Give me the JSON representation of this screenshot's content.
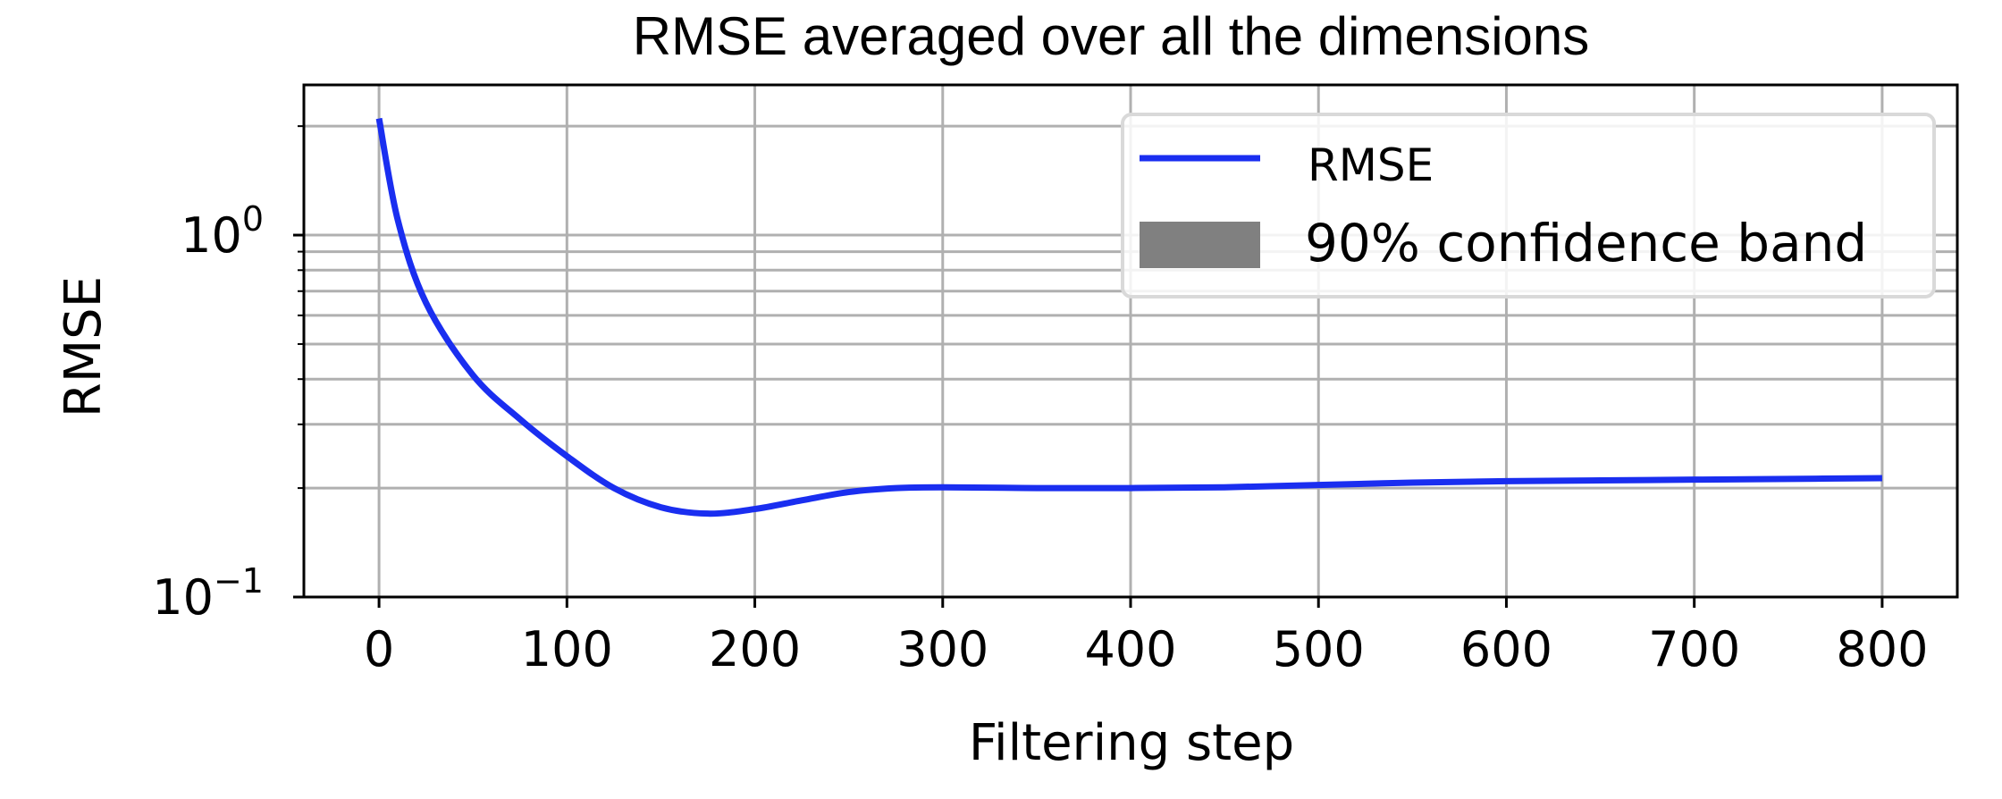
{
  "chart_data": {
    "type": "line",
    "title": "RMSE averaged over all the dimensions",
    "xlabel": "Filtering step",
    "ylabel": "RMSE",
    "xlim": [
      -40,
      840
    ],
    "ylim": [
      0.1,
      2.6
    ],
    "yscale": "log",
    "grid": true,
    "legend_position": "top-right",
    "xticks": [
      {
        "value": 0,
        "label": "0"
      },
      {
        "value": 100,
        "label": "100"
      },
      {
        "value": 200,
        "label": "200"
      },
      {
        "value": 300,
        "label": "300"
      },
      {
        "value": 400,
        "label": "400"
      },
      {
        "value": 500,
        "label": "500"
      },
      {
        "value": 600,
        "label": "600"
      },
      {
        "value": 700,
        "label": "700"
      },
      {
        "value": 800,
        "label": "800"
      }
    ],
    "yticks_major": [
      {
        "value": 0.1,
        "base": "10",
        "exp": "−1"
      },
      {
        "value": 1,
        "base": "10",
        "exp": "0"
      }
    ],
    "yticks_minor": [
      0.2,
      0.3,
      0.4,
      0.5,
      0.6,
      0.7,
      0.8,
      0.9,
      2
    ],
    "series": [
      {
        "name": "RMSE",
        "color": "#1a2ef0",
        "x": [
          0,
          10,
          25,
          50,
          75,
          100,
          125,
          150,
          175,
          200,
          225,
          250,
          275,
          300,
          350,
          400,
          450,
          500,
          550,
          600,
          650,
          700,
          750,
          800
        ],
        "y": [
          2.1,
          1.1,
          0.65,
          0.41,
          0.31,
          0.245,
          0.2,
          0.177,
          0.17,
          0.175,
          0.185,
          0.195,
          0.2,
          0.201,
          0.2,
          0.2,
          0.201,
          0.204,
          0.207,
          0.209,
          0.21,
          0.211,
          0.212,
          0.213
        ]
      }
    ],
    "legend": [
      {
        "label": "RMSE",
        "kind": "line",
        "color": "#1a2ef0"
      },
      {
        "label": "90% confidence band",
        "kind": "patch",
        "color": "#808080"
      }
    ]
  }
}
